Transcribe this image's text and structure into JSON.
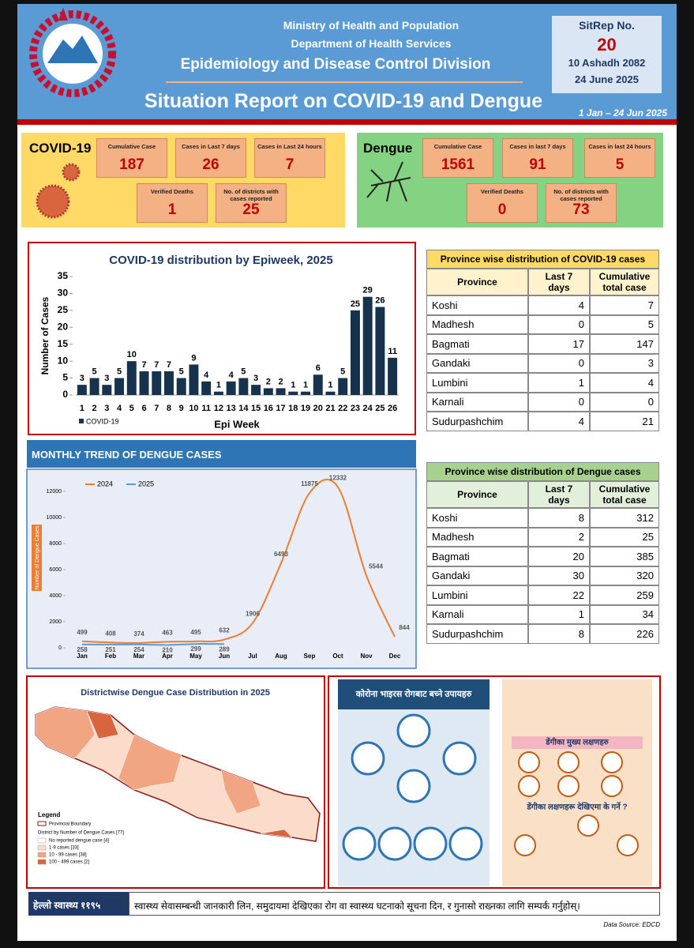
{
  "header": {
    "ministry": "Ministry of Health and Population",
    "department": "Department of Health Services",
    "division": "Epidemiology and Disease Control Division",
    "title": "Situation Report on COVID-19 and Dengue",
    "sitrep_label": "SitRep No.",
    "sitrep_number": "20",
    "date_np": "10 Ashadh 2082",
    "date_en": "24 June 2025",
    "period": "1 Jan – 24 Jun 2025"
  },
  "covid_summary": {
    "label": "COVID-19",
    "items": [
      {
        "label": "Cumulative Case",
        "value": 187
      },
      {
        "label": "Cases in Last 7 days",
        "value": 26
      },
      {
        "label": "Cases in Last 24 hours",
        "value": 7
      },
      {
        "label": "Verified Deaths",
        "value": 1
      },
      {
        "label": "No. of districts with cases reported",
        "value": 25
      }
    ]
  },
  "dengue_summary": {
    "label": "Dengue",
    "items": [
      {
        "label": "Cumulative Case",
        "value": 1561
      },
      {
        "label": "Cases in last 7 days",
        "value": 91
      },
      {
        "label": "Cases in last 24 hours",
        "value": 5
      },
      {
        "label": "Verified Deaths",
        "value": 0
      },
      {
        "label": "No. of districts with cases reported",
        "value": 73
      }
    ]
  },
  "dengue_banner": "MONTHLY TREND OF DENGUE CASES",
  "chart_data": [
    {
      "type": "bar",
      "title": "COVID-19 distribution by Epiweek, 2025",
      "x_label": "Epi Week",
      "y_label": "Number of Cases",
      "categories": [
        "1",
        "2",
        "3",
        "4",
        "5",
        "6",
        "7",
        "8",
        "9",
        "10",
        "11",
        "12",
        "13",
        "14",
        "15",
        "16",
        "17",
        "18",
        "19",
        "20",
        "21",
        "22",
        "23",
        "24",
        "25",
        "26"
      ],
      "series": [
        {
          "name": "COVID-19",
          "color": "#17324d",
          "values": [
            3,
            5,
            3,
            5,
            10,
            7,
            7,
            7,
            5,
            9,
            4,
            1,
            4,
            5,
            3,
            2,
            2,
            1,
            1,
            6,
            1,
            5,
            25,
            29,
            26,
            11
          ]
        }
      ],
      "ylim": [
        0,
        35
      ],
      "yticks": [
        0,
        5,
        10,
        15,
        20,
        25,
        30,
        35
      ]
    },
    {
      "type": "line",
      "y_label": "Number of Dengue Cases",
      "categories": [
        "Jan",
        "Feb",
        "Mar",
        "Apr",
        "May",
        "Jun",
        "Jul",
        "Aug",
        "Sep",
        "Oct",
        "Nov",
        "Dec"
      ],
      "series": [
        {
          "name": "2024",
          "color": "#ed7d31",
          "values": [
            499,
            408,
            374,
            463,
            495,
            632,
            1906,
            6493,
            11875,
            12332,
            5544,
            844
          ]
        },
        {
          "name": "2025",
          "color": "#5b9bd5",
          "values": [
            258,
            251,
            254,
            210,
            299,
            289,
            null,
            null,
            null,
            null,
            null,
            null
          ]
        }
      ],
      "ylim": [
        0,
        13000
      ],
      "yticks": [
        0,
        2000,
        4000,
        6000,
        8000,
        10000,
        12000
      ]
    }
  ],
  "covid_table": {
    "title": "Province wise distribution of COVID-19 cases",
    "columns": [
      "Province",
      "Last 7 days",
      "Cumulative total case"
    ],
    "rows": [
      [
        "Koshi",
        4,
        7
      ],
      [
        "Madhesh",
        0,
        5
      ],
      [
        "Bagmati",
        17,
        147
      ],
      [
        "Gandaki",
        0,
        3
      ],
      [
        "Lumbini",
        1,
        4
      ],
      [
        "Karnali",
        0,
        0
      ],
      [
        "Sudurpashchim",
        4,
        21
      ]
    ]
  },
  "dengue_table": {
    "title": "Province wise distribution of Dengue cases",
    "columns": [
      "Province",
      "Last 7 days",
      "Cumulative total case"
    ],
    "rows": [
      [
        "Koshi",
        8,
        312
      ],
      [
        "Madhesh",
        2,
        25
      ],
      [
        "Bagmati",
        20,
        385
      ],
      [
        "Gandaki",
        30,
        320
      ],
      [
        "Lumbini",
        22,
        259
      ],
      [
        "Karnali",
        1,
        34
      ],
      [
        "Sudurpashchim",
        8,
        226
      ]
    ]
  },
  "map": {
    "title": "Districtwise Dengue Case Distribution in 2025",
    "legend_title": "Legend",
    "boundary": "Provincial Boundary",
    "class_title": "District by Number of Dengue Cases [77]",
    "classes": [
      {
        "label": "No reported dengue case [4]",
        "color": "#ffffff"
      },
      {
        "label": "1-9 cases [33]",
        "color": "#fbdccb"
      },
      {
        "label": "10 - 99 cases [38]",
        "color": "#f2a583"
      },
      {
        "label": "100 - 499 cases [2]",
        "color": "#d9653f"
      }
    ]
  },
  "posters": {
    "corona_title": "कोरोना भाइरस रोगबाट बच्ने उपायहरु",
    "dengue_symptoms": "डेंगीका मुख्य लक्षणहरु",
    "dengue_action": "डेंगीका लक्षणहरू देखिएमा के गर्ने ?"
  },
  "footer": {
    "hotline": "हेल्लो स्वास्थ्य ११९५",
    "message": "स्वास्थ्य सेवासम्बन्धी जानकारी लिन, समुदायमा देखिएका रोग वा स्वास्थ्य घटनाको सूचना दिन, र गुनासो राख्नका लागि सम्पर्क गर्नुहोस्।",
    "source": "Data Source: EDCD"
  }
}
